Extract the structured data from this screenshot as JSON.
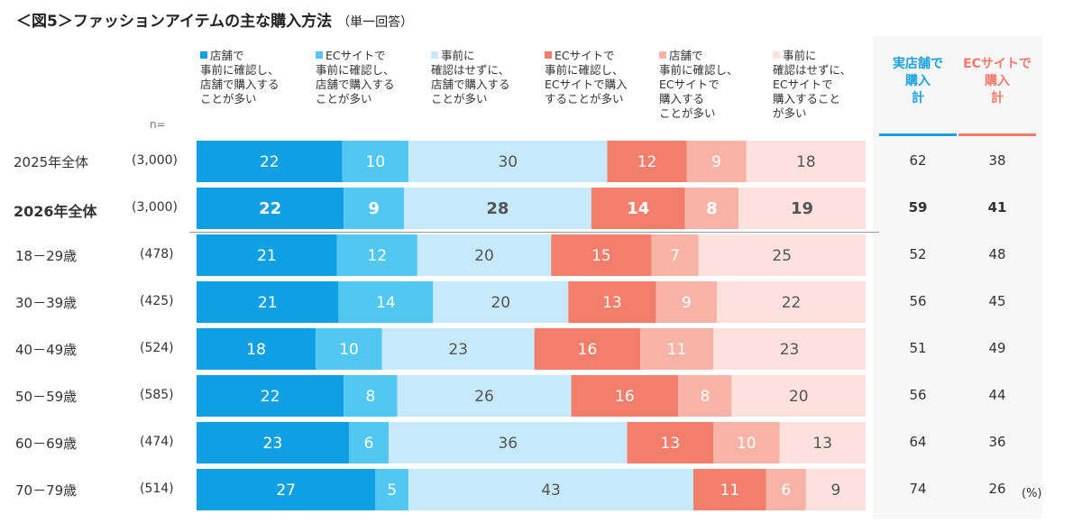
{
  "title": "＜図5＞ファッションアイテムの主な購入方法",
  "subtitle": "（単一回答）",
  "n_label": "n=",
  "unit": "(%)",
  "colors": {
    "store_pre": "#0ea0e2",
    "store_ec": "#52c7f2",
    "store_none": "#c6eafa",
    "ec_pre": "#f47e6c",
    "ec_store": "#f8b3a7",
    "ec_none": "#fde1dc",
    "store_total": "#1aa1e0",
    "ec_total": "#f07a6b"
  },
  "legend": [
    {
      "text": "店舗で\n事前に確認し、\n店舗で購入する\nことが多い"
    },
    {
      "text": "ECサイトで\n事前に確認し、\n店舗で購入する\nことが多い"
    },
    {
      "text": "事前に\n確認はせずに、\n店舗で購入する\nことが多い"
    },
    {
      "text": "ECサイトで\n事前に確認し、\nECサイトで購入\nすることが多い"
    },
    {
      "text": "店舗で\n事前に確認し、\nECサイトで\n購入する\nことが多い"
    },
    {
      "text": "事前に\n確認はせずに、\nECサイトで\n購入すること\nが多い"
    }
  ],
  "headers": {
    "store_total": "実店舗で\n購入\n計",
    "ec_total": "ECサイトで\n購入\n計"
  },
  "chart_data": {
    "type": "bar",
    "orientation": "horizontal",
    "stacked": true,
    "categories": [
      "2025年全体",
      "2026年全体",
      "18－29歳",
      "30－39歳",
      "40－49歳",
      "50－59歳",
      "60－69歳",
      "70－79歳"
    ],
    "counts": [
      "(3,000)",
      "(3,000)",
      "(478)",
      "(425)",
      "(524)",
      "(585)",
      "(474)",
      "(514)"
    ],
    "series": [
      {
        "name": "店舗で事前に確認し、店舗で購入することが多い",
        "values": [
          22,
          22,
          21,
          21,
          18,
          22,
          23,
          27
        ]
      },
      {
        "name": "ECサイトで事前に確認し、店舗で購入することが多い",
        "values": [
          10,
          9,
          12,
          14,
          10,
          8,
          6,
          5
        ]
      },
      {
        "name": "事前に確認はせずに、店舗で購入することが多い",
        "values": [
          30,
          28,
          20,
          20,
          23,
          26,
          36,
          43
        ]
      },
      {
        "name": "ECサイトで事前に確認し、ECサイトで購入することが多い",
        "values": [
          12,
          14,
          15,
          13,
          16,
          16,
          13,
          11
        ]
      },
      {
        "name": "店舗で事前に確認し、ECサイトで購入することが多い",
        "values": [
          9,
          8,
          7,
          9,
          11,
          8,
          10,
          6
        ]
      },
      {
        "name": "事前に確認はせずに、ECサイトで購入することが多い",
        "values": [
          18,
          19,
          25,
          22,
          23,
          20,
          13,
          9
        ]
      }
    ],
    "totals": {
      "store": [
        62,
        59,
        52,
        56,
        51,
        56,
        64,
        74
      ],
      "ec": [
        38,
        41,
        48,
        45,
        49,
        44,
        36,
        26
      ]
    },
    "xlim": [
      0,
      100
    ]
  }
}
